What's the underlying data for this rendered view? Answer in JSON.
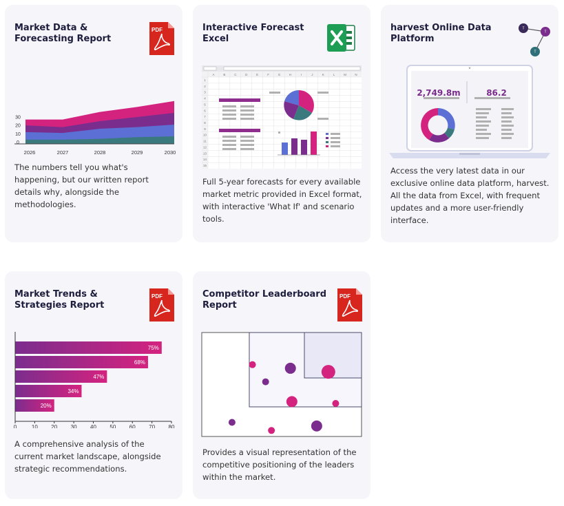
{
  "cards": [
    {
      "title": "Market Data & Forecasting Report",
      "icon": "pdf-icon",
      "icon_label": "PDF",
      "description": "The numbers tell you what's happening, but our written report details why, alongside the methodologies."
    },
    {
      "title": "Interactive Forecast Excel",
      "icon": "excel-icon",
      "description": "Full 5-year forecasts for every available market metric provided in Excel format, with interactive 'What If' and scenario tools."
    },
    {
      "title": "harvest Online Data Platform",
      "icon": "network-icon",
      "description": "Access the very latest data in our exclusive online data platform, harvest. All the data from Excel, with frequent updates and a more user-friendly interface."
    },
    {
      "title": "Market Trends & Strategies Report",
      "icon": "pdf-icon",
      "icon_label": "PDF",
      "description": "A comprehensive analysis of the current market landscape, alongside strategic recommendations."
    },
    {
      "title": "Competitor Leaderboard Report",
      "icon": "pdf-icon",
      "icon_label": "PDF",
      "description": "Provides a visual representation of the competitive positioning of the leaders within the market."
    }
  ],
  "colors": {
    "magenta": "#d4237f",
    "purple": "#7b2d8e",
    "blue": "#5b6fd4",
    "teal": "#3a7a7e",
    "pdf_red": "#d7261e",
    "excel_green": "#1e7e45"
  },
  "excel": {
    "columns": [
      "A",
      "B",
      "C",
      "D",
      "E",
      "F",
      "G",
      "H",
      "I",
      "J",
      "K",
      "L",
      "M",
      "N"
    ],
    "rows": [
      "1",
      "2",
      "3",
      "4",
      "5",
      "6",
      "7",
      "8",
      "9",
      "10",
      "11",
      "12",
      "13",
      "14",
      "15"
    ]
  },
  "platform": {
    "kpi_1": "2,749.8m",
    "kpi_2": "86.2"
  },
  "chart_data": [
    {
      "type": "area",
      "x": [
        2026,
        2027,
        2028,
        2029,
        2030
      ],
      "y_ticks": [
        "0",
        "10",
        "20",
        "30"
      ],
      "series": [
        {
          "values": [
            5,
            5,
            6,
            8,
            9
          ]
        },
        {
          "values": [
            14,
            13,
            18,
            20,
            23
          ]
        },
        {
          "values": [
            22,
            20,
            27,
            32,
            37
          ]
        },
        {
          "values": [
            29,
            29,
            38,
            44,
            51
          ]
        }
      ]
    },
    {
      "type": "bar",
      "orientation": "horizontal",
      "values": [
        75,
        68,
        47,
        34,
        20
      ],
      "labels": [
        "75%",
        "68%",
        "47%",
        "34%",
        "20%"
      ],
      "xticks": [
        "0",
        "10",
        "20",
        "30",
        "40",
        "50",
        "60",
        "70",
        "80"
      ],
      "xlim": [
        0,
        80
      ]
    },
    {
      "type": "scatter",
      "points": [
        {
          "x": 0.3,
          "y": 0.72,
          "color": "magenta",
          "r": 5
        },
        {
          "x": 0.56,
          "y": 0.68,
          "color": "purple",
          "r": 8
        },
        {
          "x": 0.82,
          "y": 0.64,
          "color": "magenta",
          "r": 10
        },
        {
          "x": 0.39,
          "y": 0.53,
          "color": "purple",
          "r": 5
        },
        {
          "x": 0.57,
          "y": 0.31,
          "color": "magenta",
          "r": 8
        },
        {
          "x": 0.87,
          "y": 0.29,
          "color": "magenta",
          "r": 5
        },
        {
          "x": 0.16,
          "y": 0.08,
          "color": "purple",
          "r": 5
        },
        {
          "x": 0.43,
          "y": -0.01,
          "color": "magenta",
          "r": 5
        },
        {
          "x": 0.74,
          "y": 0.04,
          "color": "purple",
          "r": 8
        }
      ]
    }
  ]
}
